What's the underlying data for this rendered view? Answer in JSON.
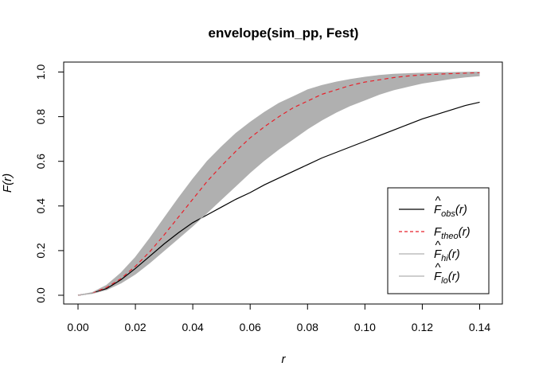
{
  "chart_data": {
    "type": "line",
    "title": "envelope(sim_pp, Fest)",
    "xlabel": "r",
    "ylabel": "F(r)",
    "xlim": [
      0,
      0.14
    ],
    "ylim": [
      0,
      1
    ],
    "x_ticks": [
      "0.00",
      "0.02",
      "0.04",
      "0.06",
      "0.08",
      "0.10",
      "0.12",
      "0.14"
    ],
    "y_ticks": [
      "0.0",
      "0.2",
      "0.4",
      "0.6",
      "0.8",
      "1.0"
    ],
    "grid": false,
    "legend_position": "bottom-right",
    "x": [
      0,
      0.005,
      0.01,
      0.015,
      0.02,
      0.025,
      0.03,
      0.035,
      0.04,
      0.045,
      0.05,
      0.055,
      0.06,
      0.065,
      0.07,
      0.075,
      0.08,
      0.085,
      0.09,
      0.095,
      0.1,
      0.105,
      0.11,
      0.115,
      0.12,
      0.125,
      0.13,
      0.135,
      0.14
    ],
    "series": [
      {
        "name": "obs",
        "style": "solid",
        "color": "#000000",
        "values": [
          0,
          0.01,
          0.03,
          0.07,
          0.12,
          0.175,
          0.23,
          0.28,
          0.325,
          0.36,
          0.395,
          0.43,
          0.46,
          0.495,
          0.525,
          0.555,
          0.585,
          0.615,
          0.64,
          0.665,
          0.69,
          0.715,
          0.74,
          0.765,
          0.79,
          0.81,
          0.83,
          0.85,
          0.865
        ]
      },
      {
        "name": "theo",
        "style": "dashed",
        "color": "#e8212b",
        "values": [
          0,
          0.01,
          0.035,
          0.075,
          0.13,
          0.195,
          0.27,
          0.35,
          0.43,
          0.51,
          0.58,
          0.645,
          0.705,
          0.755,
          0.8,
          0.84,
          0.87,
          0.9,
          0.92,
          0.94,
          0.955,
          0.965,
          0.975,
          0.982,
          0.987,
          0.99,
          0.993,
          0.995,
          0.997
        ]
      },
      {
        "name": "hi",
        "style": "envelope",
        "color": "#b0b0b0",
        "values": [
          0,
          0.012,
          0.045,
          0.1,
          0.17,
          0.255,
          0.345,
          0.435,
          0.52,
          0.6,
          0.665,
          0.725,
          0.775,
          0.82,
          0.86,
          0.89,
          0.92,
          0.94,
          0.955,
          0.967,
          0.977,
          0.985,
          0.99,
          0.993,
          0.995,
          0.997,
          0.998,
          0.999,
          1.0
        ]
      },
      {
        "name": "lo",
        "style": "envelope",
        "color": "#b0b0b0",
        "values": [
          0,
          0.008,
          0.025,
          0.055,
          0.095,
          0.145,
          0.2,
          0.255,
          0.31,
          0.37,
          0.43,
          0.49,
          0.55,
          0.605,
          0.655,
          0.7,
          0.745,
          0.785,
          0.82,
          0.85,
          0.875,
          0.9,
          0.92,
          0.935,
          0.95,
          0.96,
          0.97,
          0.978,
          0.983
        ]
      }
    ],
    "legend": [
      {
        "base": "F",
        "hat": true,
        "sub": "obs",
        "arg": "(r)",
        "style": "solid",
        "color": "#000000"
      },
      {
        "base": "F",
        "hat": false,
        "sub": "theo",
        "arg": "(r)",
        "style": "dashed",
        "color": "#e8212b"
      },
      {
        "base": "F",
        "hat": true,
        "sub": "hi",
        "arg": "(r)",
        "style": "solid",
        "color": "#b0b0b0"
      },
      {
        "base": "F",
        "hat": true,
        "sub": "lo",
        "arg": "(r)",
        "style": "solid",
        "color": "#b0b0b0"
      }
    ]
  }
}
